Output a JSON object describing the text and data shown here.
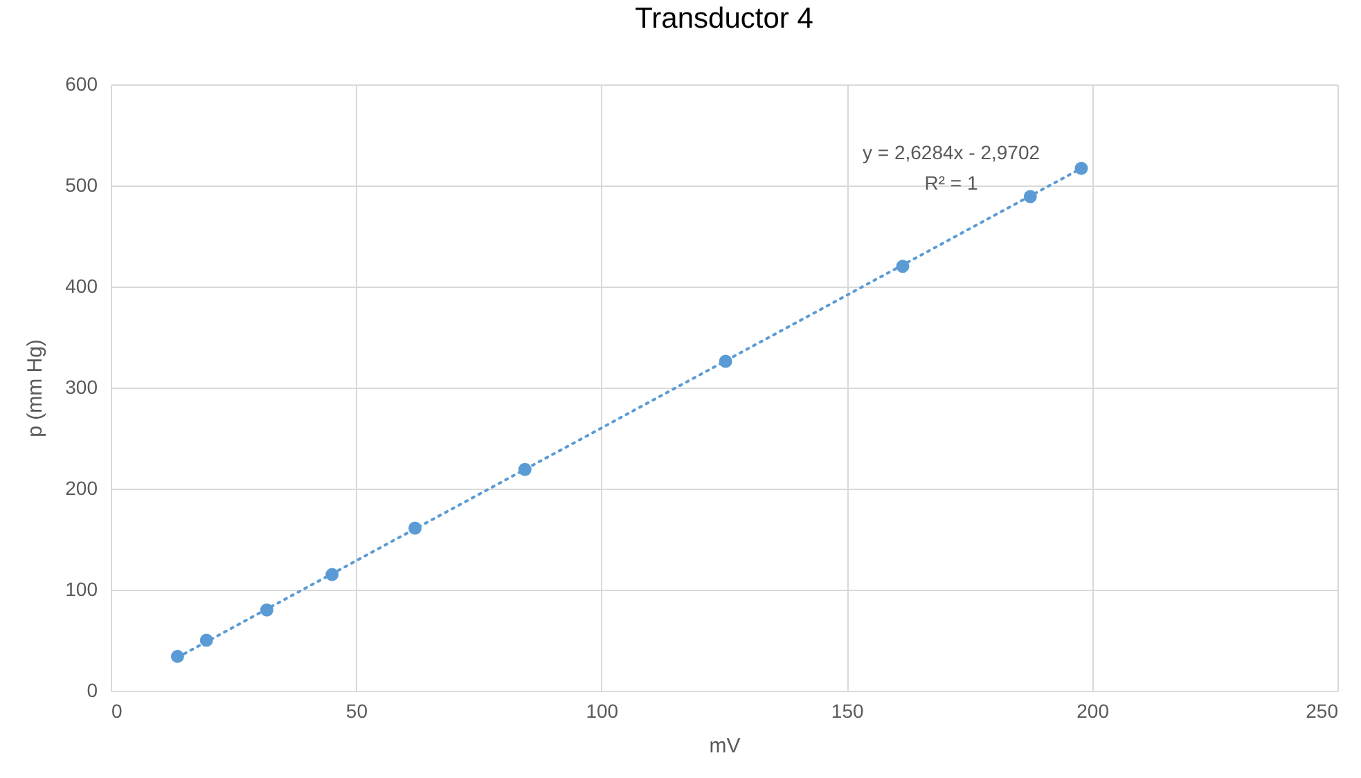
{
  "chart_data": {
    "type": "scatter",
    "title": "Transductor 4",
    "xlabel": "mV",
    "ylabel": "p (mm Hg)",
    "x": [
      13.6,
      19.5,
      31.8,
      45.1,
      62.0,
      84.4,
      125.3,
      161.4,
      187.4,
      197.8
    ],
    "series": [
      {
        "color": "#5b9bd5",
        "marker": "circle",
        "values": [
          34,
          50,
          80,
          115,
          161,
          219,
          326,
          420,
          489,
          517
        ]
      },
      {
        "type": "line",
        "color": "#5b9bd5",
        "line_style": "dotted",
        "x": [
          13.6,
          197.8
        ],
        "values": [
          33,
          517
        ]
      }
    ],
    "xlim": [
      0,
      250
    ],
    "xticks": [
      0,
      50,
      100,
      150,
      200,
      250
    ],
    "ylim": [
      0,
      600
    ],
    "yticks": [
      0,
      100,
      200,
      300,
      400,
      500,
      600
    ],
    "grid": true,
    "annotations": [
      "y = 2,6284x - 2,9702",
      "R² = 1"
    ]
  }
}
